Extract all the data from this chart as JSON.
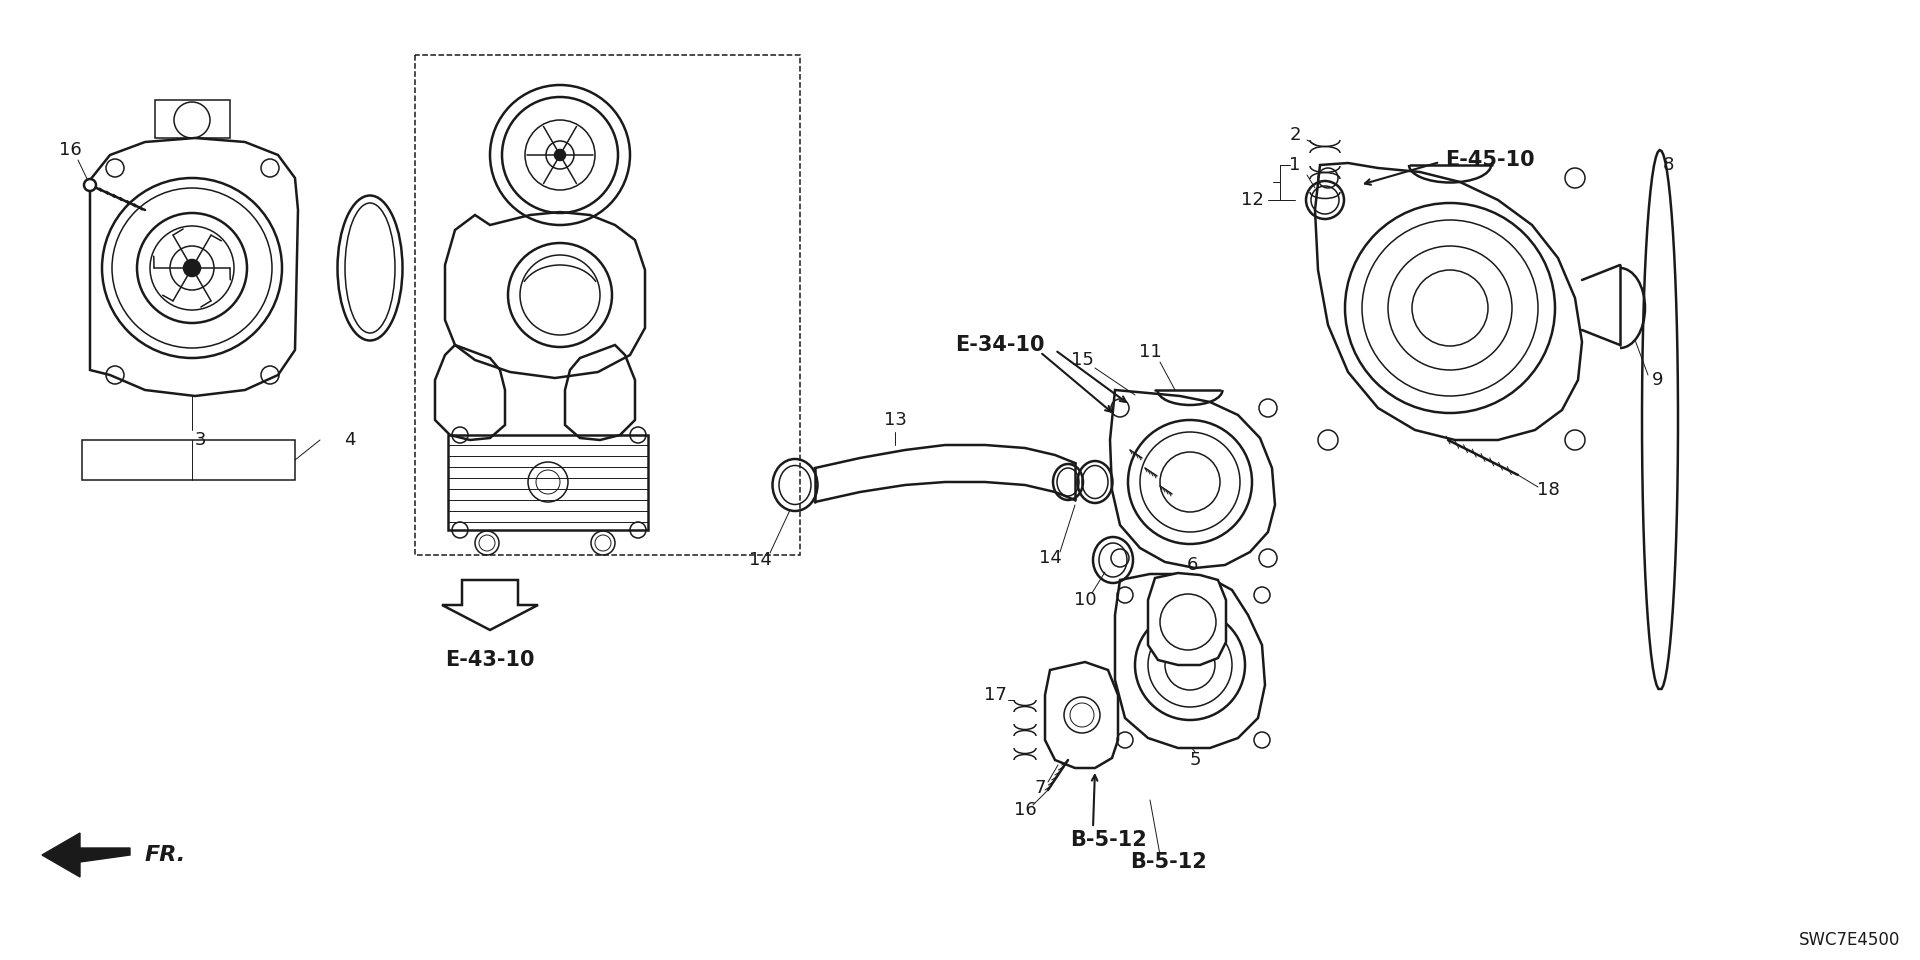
{
  "bg_color": "#ffffff",
  "lc": "#1a1a1a",
  "diagram_code": "SWC7E4500",
  "figsize": [
    19.2,
    9.6
  ],
  "dpi": 100,
  "xlim": [
    0,
    1920
  ],
  "ylim": [
    960,
    0
  ],
  "label_fs": 13,
  "bold_fs": 15,
  "lw_main": 1.8,
  "lw_thin": 1.1,
  "lw_vt": 0.7
}
